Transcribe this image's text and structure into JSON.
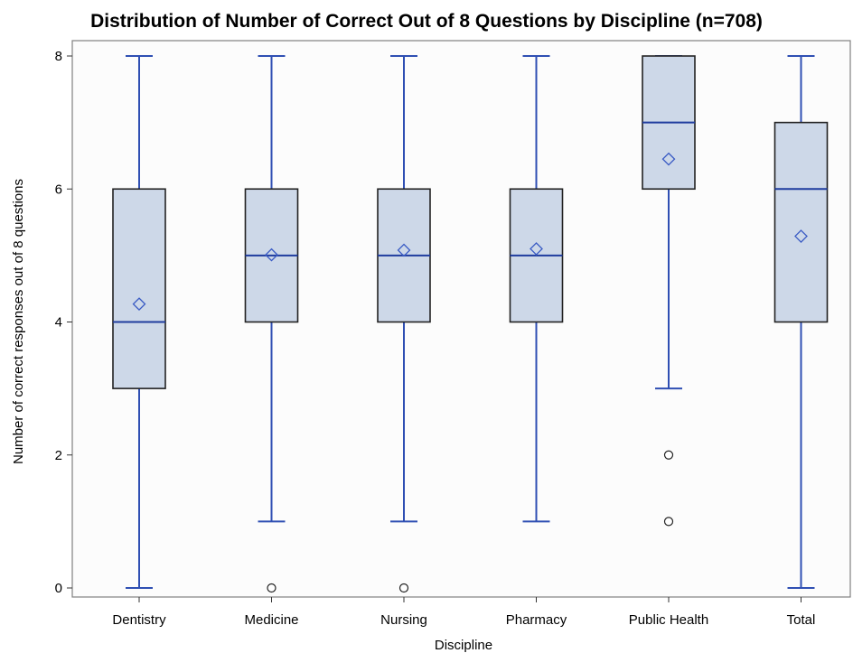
{
  "chart_data": {
    "type": "box",
    "title": "Distribution of Number of Correct Out of 8 Questions by Discipline (n=708)",
    "xlabel": "Discipline",
    "ylabel": "Number of correct responses out of 8 questions",
    "ylim": [
      0,
      8
    ],
    "yticks": [
      0,
      2,
      4,
      6,
      8
    ],
    "grid": false,
    "categories": [
      "Dentistry",
      "Medicine",
      "Nursing",
      "Pharmacy",
      "Public Health",
      "Total"
    ],
    "boxes": [
      {
        "category": "Dentistry",
        "min": 0,
        "q1": 3,
        "median": 4,
        "q3": 6,
        "max": 8,
        "mean": 4.27,
        "outliers": []
      },
      {
        "category": "Medicine",
        "min": 1,
        "q1": 4,
        "median": 5,
        "q3": 6,
        "max": 8,
        "mean": 5.01,
        "outliers": [
          0
        ]
      },
      {
        "category": "Nursing",
        "min": 1,
        "q1": 4,
        "median": 5,
        "q3": 6,
        "max": 8,
        "mean": 5.08,
        "outliers": [
          0
        ]
      },
      {
        "category": "Pharmacy",
        "min": 1,
        "q1": 4,
        "median": 5,
        "q3": 6,
        "max": 8,
        "mean": 5.1,
        "outliers": []
      },
      {
        "category": "Public Health",
        "min": 3,
        "q1": 6,
        "median": 7,
        "q3": 8,
        "max": 8,
        "mean": 6.45,
        "outliers": [
          2,
          1
        ]
      },
      {
        "category": "Total",
        "min": 0,
        "q1": 4,
        "median": 6,
        "q3": 7,
        "max": 8,
        "mean": 5.29,
        "outliers": []
      }
    ],
    "colors": {
      "box_fill": "#cdd8e8",
      "box_stroke": "#222222",
      "whisker": "#2f4fb3",
      "median": "#1f3c9e",
      "mean_marker": "#3a5bc4",
      "outlier": "#222222",
      "frame": "#808080"
    }
  }
}
